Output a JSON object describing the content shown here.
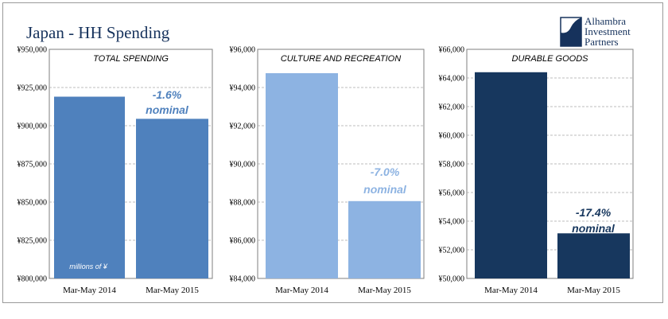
{
  "header": {
    "title": "Japan - HH Spending",
    "logo": {
      "lines": [
        "Alhambra",
        "Investment",
        "Partners"
      ],
      "icon": "alhambra-logo-icon",
      "color": "#16325c"
    }
  },
  "chart_data": [
    {
      "type": "bar",
      "title": "TOTAL SPENDING",
      "categories": [
        "Mar-May 2014",
        "Mar-May 2015"
      ],
      "values": [
        919000,
        904500
      ],
      "ylim": [
        800000,
        950000
      ],
      "ytick_step": 25000,
      "yticks": [
        "¥800,000",
        "¥825,000",
        "¥850,000",
        "¥875,000",
        "¥900,000",
        "¥925,000",
        "¥950,000"
      ],
      "grid": true,
      "bar_color": "#4f81bd",
      "annotation": {
        "lines": [
          "-1.6%",
          "nominal"
        ],
        "color": "#4f81bd"
      },
      "unit_note": "millions of ¥"
    },
    {
      "type": "bar",
      "title": "CULTURE AND RECREATION",
      "categories": [
        "Mar-May 2014",
        "Mar-May 2015"
      ],
      "values": [
        94750,
        88050
      ],
      "ylim": [
        84000,
        96000
      ],
      "ytick_step": 2000,
      "yticks": [
        "¥84,000",
        "¥86,000",
        "¥88,000",
        "¥90,000",
        "¥92,000",
        "¥94,000",
        "¥96,000"
      ],
      "grid": true,
      "bar_color": "#8db3e2",
      "annotation": {
        "lines": [
          "-7.0%",
          "nominal"
        ],
        "color": "#8db3e2"
      }
    },
    {
      "type": "bar",
      "title": "DURABLE GOODS",
      "categories": [
        "Mar-May 2014",
        "Mar-May 2015"
      ],
      "values": [
        64400,
        53150
      ],
      "ylim": [
        50000,
        66000
      ],
      "ytick_step": 2000,
      "yticks": [
        "¥50,000",
        "¥52,000",
        "¥54,000",
        "¥56,000",
        "¥58,000",
        "¥60,000",
        "¥62,000",
        "¥64,000",
        "¥66,000"
      ],
      "grid": true,
      "bar_color": "#17375e",
      "annotation": {
        "lines": [
          "-17.4%",
          "nominal"
        ],
        "color": "#17375e"
      }
    }
  ]
}
